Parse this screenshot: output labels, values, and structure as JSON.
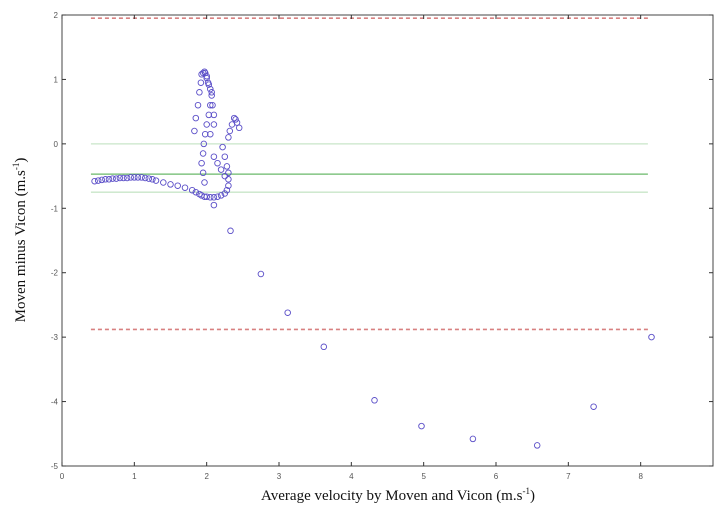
{
  "chart_data": {
    "type": "scatter",
    "title": "",
    "xlabel": {
      "text": "Average velocity by Moven and Vicon (m.s",
      "sup": "-1",
      "close": ")"
    },
    "ylabel": {
      "text": "Moven minus Vicon (m.s",
      "sup": "-1",
      "close": ")"
    },
    "xlim": [
      0,
      9
    ],
    "ylim": [
      -5,
      2
    ],
    "xticks": [
      "0",
      "1",
      "2",
      "3",
      "4",
      "5",
      "6",
      "7",
      "8"
    ],
    "yticks": [
      "-5",
      "-4",
      "-3",
      "-2",
      "-1",
      "0",
      "1",
      "2"
    ],
    "grid": false,
    "colors": {
      "points": "#5b4fc8",
      "limits": "#d88080",
      "mean": "#6ab86a",
      "ci": "#c8e6c8",
      "axis": "#333333"
    },
    "reference_lines": [
      {
        "name": "upper-limit",
        "y": 1.95,
        "x_from": 0.4,
        "x_to": 8.1,
        "style": "dashed",
        "color": "limits"
      },
      {
        "name": "lower-limit",
        "y": -2.88,
        "x_from": 0.4,
        "x_to": 8.1,
        "style": "dashed",
        "color": "limits"
      },
      {
        "name": "mean-bias",
        "y": -0.47,
        "x_from": 0.4,
        "x_to": 8.1,
        "style": "solid",
        "color": "mean"
      },
      {
        "name": "ci-upper",
        "y": 0.0,
        "x_from": 0.4,
        "x_to": 8.1,
        "style": "solid",
        "color": "ci"
      },
      {
        "name": "ci-lower",
        "y": -0.75,
        "x_from": 0.4,
        "x_to": 8.1,
        "style": "solid",
        "color": "ci"
      }
    ],
    "series": [
      {
        "points": [
          [
            0.45,
            -0.58
          ],
          [
            0.5,
            -0.57
          ],
          [
            0.55,
            -0.56
          ],
          [
            0.6,
            -0.55
          ],
          [
            0.65,
            -0.55
          ],
          [
            0.7,
            -0.54
          ],
          [
            0.75,
            -0.54
          ],
          [
            0.8,
            -0.53
          ],
          [
            0.85,
            -0.53
          ],
          [
            0.9,
            -0.53
          ],
          [
            0.95,
            -0.52
          ],
          [
            1.0,
            -0.52
          ],
          [
            1.05,
            -0.52
          ],
          [
            1.1,
            -0.52
          ],
          [
            1.15,
            -0.53
          ],
          [
            1.2,
            -0.54
          ],
          [
            1.25,
            -0.55
          ],
          [
            1.3,
            -0.57
          ],
          [
            1.4,
            -0.6
          ],
          [
            1.5,
            -0.63
          ],
          [
            1.6,
            -0.65
          ],
          [
            1.7,
            -0.68
          ],
          [
            1.8,
            -0.72
          ],
          [
            1.85,
            -0.75
          ],
          [
            1.9,
            -0.78
          ],
          [
            1.93,
            -0.8
          ],
          [
            1.97,
            -0.82
          ],
          [
            2.0,
            -0.82
          ],
          [
            2.05,
            -0.83
          ],
          [
            2.1,
            -0.83
          ],
          [
            2.15,
            -0.82
          ],
          [
            2.2,
            -0.8
          ],
          [
            2.25,
            -0.77
          ],
          [
            2.28,
            -0.72
          ],
          [
            2.3,
            -0.65
          ],
          [
            2.3,
            -0.55
          ],
          [
            2.3,
            -0.45
          ],
          [
            2.28,
            -0.35
          ],
          [
            2.25,
            -0.2
          ],
          [
            2.22,
            -0.05
          ],
          [
            1.83,
            0.2
          ],
          [
            1.85,
            0.4
          ],
          [
            1.88,
            0.6
          ],
          [
            1.9,
            0.8
          ],
          [
            1.92,
            0.95
          ],
          [
            1.93,
            1.08
          ],
          [
            1.95,
            1.1
          ],
          [
            1.97,
            1.12
          ],
          [
            1.98,
            1.1
          ],
          [
            2.0,
            1.05
          ],
          [
            2.02,
            0.95
          ],
          [
            2.05,
            0.85
          ],
          [
            2.07,
            0.75
          ],
          [
            2.05,
            0.6
          ],
          [
            2.03,
            0.45
          ],
          [
            2.0,
            0.3
          ],
          [
            1.98,
            0.15
          ],
          [
            1.96,
            0.0
          ],
          [
            1.95,
            -0.15
          ],
          [
            1.93,
            -0.3
          ],
          [
            1.95,
            -0.45
          ],
          [
            1.97,
            -0.6
          ],
          [
            2.05,
            0.15
          ],
          [
            2.1,
            0.3
          ],
          [
            2.1,
            0.45
          ],
          [
            2.08,
            0.6
          ],
          [
            2.07,
            0.8
          ],
          [
            2.03,
            0.92
          ],
          [
            2.0,
            1.02
          ],
          [
            2.1,
            -0.2
          ],
          [
            2.15,
            -0.3
          ],
          [
            2.2,
            -0.4
          ],
          [
            2.25,
            -0.5
          ],
          [
            2.3,
            0.1
          ],
          [
            2.32,
            0.2
          ],
          [
            2.35,
            0.3
          ],
          [
            2.38,
            0.4
          ],
          [
            2.4,
            0.38
          ],
          [
            2.42,
            0.33
          ],
          [
            2.45,
            0.25
          ],
          [
            2.1,
            -0.95
          ],
          [
            2.33,
            -1.35
          ],
          [
            2.75,
            -2.02
          ],
          [
            3.12,
            -2.62
          ],
          [
            3.62,
            -3.15
          ],
          [
            4.32,
            -3.98
          ],
          [
            4.97,
            -4.38
          ],
          [
            5.68,
            -4.58
          ],
          [
            6.57,
            -4.68
          ],
          [
            7.35,
            -4.08
          ],
          [
            8.15,
            -3.0
          ]
        ]
      }
    ]
  }
}
